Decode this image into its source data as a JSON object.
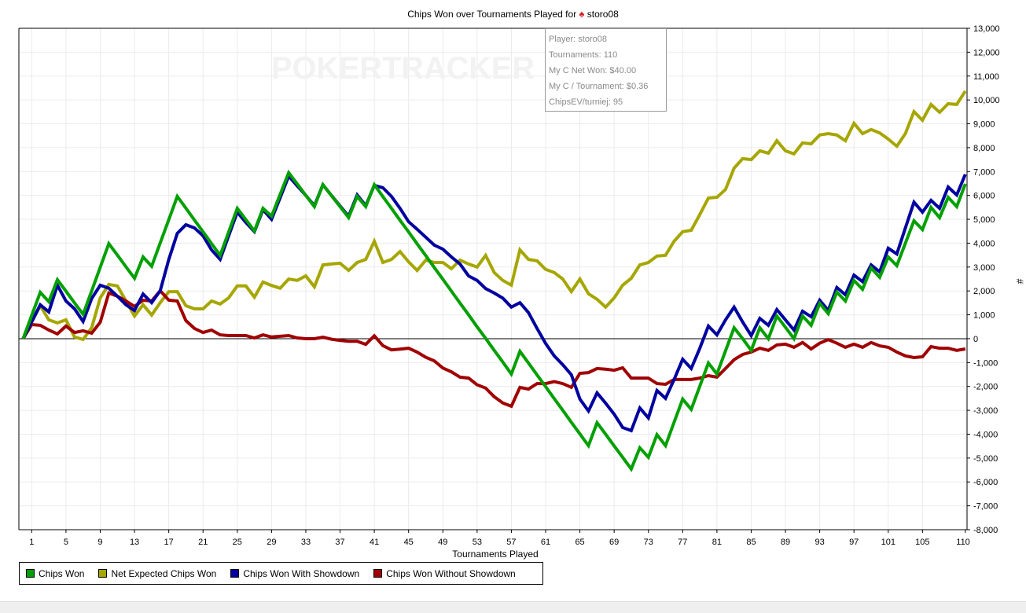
{
  "title": {
    "prefix": "Chips Won over Tournaments Played for",
    "player": "storo08",
    "icon": "spade-icon"
  },
  "watermark": "POKERTRACKER",
  "tooltip": {
    "lines": [
      "Player: storo08",
      "Tournaments: 110",
      "My C Net Won: $40.00",
      "My C / Tournament: $0.36",
      "ChipsEV/turniej: 95"
    ]
  },
  "chart_data": {
    "type": "line",
    "title": "Chips Won over Tournaments Played for storo08",
    "xlabel": "Tournaments Played",
    "ylabel": "#",
    "xlim": [
      -0.5,
      110.2
    ],
    "ylim": [
      -8000,
      13000
    ],
    "grid": true,
    "legend_position": "bottom-left",
    "x_ticks": [
      1,
      5,
      9,
      13,
      17,
      21,
      25,
      29,
      33,
      37,
      41,
      45,
      49,
      53,
      57,
      61,
      65,
      69,
      73,
      77,
      81,
      85,
      89,
      93,
      97,
      101,
      105,
      110
    ],
    "y_ticks": [
      -8000,
      -7000,
      -6000,
      -5000,
      -4000,
      -3000,
      -2000,
      -1000,
      0,
      1000,
      2000,
      3000,
      4000,
      5000,
      6000,
      7000,
      8000,
      9000,
      10000,
      11000,
      12000,
      13000
    ],
    "y_tick_labels": [
      "-8,000",
      "-7,000",
      "-6,000",
      "-5,000",
      "-4,000",
      "-3,000",
      "-2,000",
      "-1,000",
      "0",
      "1,000",
      "2,000",
      "3,000",
      "4,000",
      "5,000",
      "6,000",
      "7,000",
      "8,000",
      "9,000",
      "10,000",
      "11,000",
      "12,000",
      "13,000"
    ],
    "x_start": 0,
    "series": [
      {
        "name": "Net Expected Chips Won",
        "color": "#a6a600",
        "values": [
          0,
          700,
          1380,
          790,
          660,
          790,
          70,
          -30,
          460,
          1710,
          2270,
          2210,
          1580,
          950,
          1420,
          990,
          1510,
          1970,
          1970,
          1380,
          1250,
          1250,
          1580,
          1450,
          1710,
          2210,
          2210,
          1740,
          2370,
          2230,
          2110,
          2500,
          2440,
          2630,
          2170,
          3090,
          3130,
          3160,
          2860,
          3190,
          3320,
          4080,
          3190,
          3320,
          3650,
          3220,
          2860,
          3290,
          3190,
          3190,
          2930,
          3290,
          3130,
          3000,
          3490,
          2770,
          2440,
          2240,
          3720,
          3320,
          3260,
          2900,
          2770,
          2500,
          1970,
          2500,
          1880,
          1650,
          1320,
          1710,
          2240,
          2530,
          3090,
          3190,
          3460,
          3490,
          4080,
          4480,
          4540,
          5200,
          5890,
          5920,
          6250,
          7140,
          7540,
          7500,
          7870,
          7770,
          8290,
          7870,
          7740,
          8200,
          8160,
          8530,
          8590,
          8530,
          8290,
          9020,
          8590,
          8760,
          8620,
          8360,
          8060,
          8590,
          9510,
          9150,
          9810,
          9480,
          9840,
          9810,
          10370
        ]
      },
      {
        "name": "Chips Won Without Showdown",
        "color": "#a00000",
        "values": [
          0,
          590,
          560,
          360,
          200,
          530,
          260,
          330,
          230,
          690,
          1910,
          1780,
          1580,
          1350,
          1610,
          1580,
          2010,
          1610,
          1580,
          760,
          430,
          260,
          360,
          160,
          130,
          130,
          130,
          30,
          160,
          70,
          100,
          130,
          30,
          0,
          0,
          60,
          -20,
          -70,
          -110,
          -110,
          -240,
          120,
          -290,
          -470,
          -440,
          -400,
          -560,
          -780,
          -930,
          -1230,
          -1390,
          -1610,
          -1650,
          -1930,
          -2070,
          -2430,
          -2690,
          -2830,
          -2040,
          -2110,
          -1880,
          -1880,
          -1800,
          -1880,
          -2040,
          -1450,
          -1420,
          -1250,
          -1280,
          -1320,
          -1220,
          -1650,
          -1650,
          -1650,
          -1880,
          -1910,
          -1710,
          -1710,
          -1710,
          -1650,
          -1550,
          -1610,
          -1250,
          -880,
          -660,
          -560,
          -400,
          -490,
          -260,
          -230,
          -360,
          -160,
          -430,
          -190,
          -40,
          -190,
          -360,
          -230,
          -360,
          -160,
          -300,
          -360,
          -560,
          -720,
          -790,
          -760,
          -330,
          -400,
          -400,
          -490,
          -430
        ]
      },
      {
        "name": "Chips Won With Showdown",
        "color": "#0000a0",
        "values": [
          0,
          700,
          1420,
          1120,
          2240,
          1580,
          1250,
          720,
          1680,
          2240,
          2110,
          1780,
          1420,
          1180,
          1870,
          1510,
          2010,
          3320,
          4410,
          4770,
          4640,
          4310,
          3720,
          3320,
          4310,
          5300,
          4870,
          4480,
          5400,
          5000,
          5900,
          6810,
          6400,
          6000,
          5570,
          6450,
          6000,
          5560,
          5130,
          6020,
          5570,
          6420,
          6320,
          5960,
          5460,
          4900,
          4580,
          4250,
          3920,
          3750,
          3420,
          3130,
          2630,
          2440,
          2100,
          1910,
          1700,
          1320,
          1510,
          1090,
          430,
          -200,
          -720,
          -1090,
          -1510,
          -2530,
          -3030,
          -2270,
          -2700,
          -3160,
          -3720,
          -3850,
          -2900,
          -3320,
          -2170,
          -2500,
          -1710,
          -860,
          -1250,
          -400,
          530,
          160,
          790,
          1320,
          700,
          130,
          850,
          560,
          1220,
          790,
          360,
          1150,
          920,
          1610,
          1180,
          2140,
          1840,
          2660,
          2390,
          3090,
          2800,
          3790,
          3550,
          4640,
          5720,
          5300,
          5790,
          5460,
          6350,
          6020,
          6880
        ]
      },
      {
        "name": "Chips Won",
        "color": "#00a000",
        "values": [
          0,
          970,
          1940,
          1550,
          2470,
          1990,
          1500,
          1020,
          2000,
          2990,
          3980,
          3500,
          3010,
          2530,
          3420,
          3030,
          4010,
          4990,
          5960,
          5470,
          4970,
          4480,
          3980,
          3490,
          4470,
          5460,
          4990,
          4510,
          5460,
          5130,
          6040,
          6950,
          6480,
          6000,
          5530,
          6450,
          5990,
          5530,
          5070,
          5960,
          5530,
          6450,
          5950,
          5460,
          4960,
          4470,
          3970,
          3480,
          2980,
          2490,
          1990,
          1490,
          1000,
          500,
          10,
          -490,
          -980,
          -1480,
          -530,
          -1020,
          -1520,
          -2010,
          -2510,
          -3000,
          -3500,
          -3990,
          -4480,
          -3520,
          -4000,
          -4490,
          -4970,
          -5460,
          -4570,
          -4970,
          -4020,
          -4480,
          -3500,
          -2530,
          -2960,
          -1990,
          -1020,
          -1480,
          -510,
          460,
          0,
          -490,
          460,
          0,
          950,
          480,
          0,
          950,
          560,
          1480,
          1050,
          1950,
          1580,
          2440,
          2070,
          2960,
          2570,
          3420,
          3060,
          4000,
          4940,
          4570,
          5500,
          5070,
          5920,
          5530,
          6480
        ]
      }
    ],
    "legend": [
      {
        "label": "Chips Won",
        "color": "#00a000"
      },
      {
        "label": "Net Expected Chips Won",
        "color": "#a6a600"
      },
      {
        "label": "Chips Won With Showdown",
        "color": "#0000a0"
      },
      {
        "label": "Chips Won Without Showdown",
        "color": "#a00000"
      }
    ]
  }
}
